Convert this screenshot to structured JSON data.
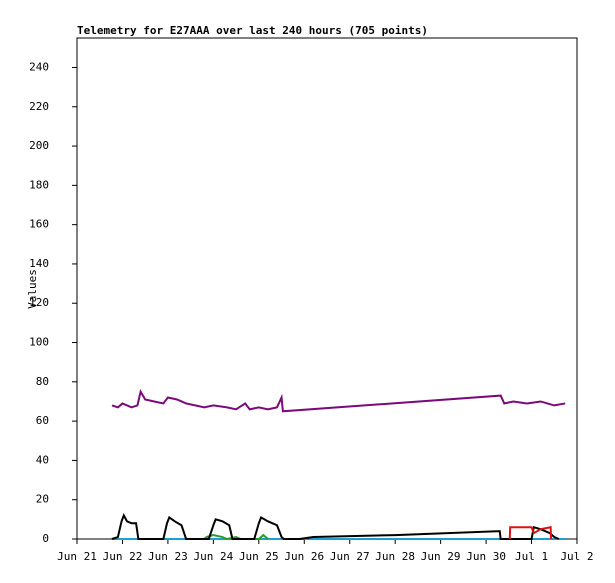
{
  "chart_data": {
    "type": "line",
    "title": "Telemetry for E27AAA over last 240 hours (705 points)",
    "y_label": "Values",
    "xlim": [
      0,
      11
    ],
    "xticks": [
      {
        "value": 0,
        "label": "Jun 21"
      },
      {
        "value": 1,
        "label": "Jun 22"
      },
      {
        "value": 2,
        "label": "Jun 23"
      },
      {
        "value": 3,
        "label": "Jun 24"
      },
      {
        "value": 4,
        "label": "Jun 25"
      },
      {
        "value": 5,
        "label": "Jun 26"
      },
      {
        "value": 6,
        "label": "Jun 27"
      },
      {
        "value": 7,
        "label": "Jun 28"
      },
      {
        "value": 8,
        "label": "Jun 29"
      },
      {
        "value": 9,
        "label": "Jun 30"
      },
      {
        "value": 10,
        "label": "Jul 1"
      },
      {
        "value": 11,
        "label": "Jul 2"
      }
    ],
    "ylim": [
      0,
      255
    ],
    "yticks": [
      0,
      20,
      40,
      60,
      80,
      100,
      120,
      140,
      160,
      180,
      200,
      220,
      240
    ],
    "series": [
      {
        "color": "#1f9fd0",
        "x": [
          0.77,
          10.74
        ],
        "values": [
          0,
          0
        ]
      },
      {
        "color": "#7a0a7a",
        "x": [
          0.77,
          0.9,
          1.0,
          1.2,
          1.33,
          1.4,
          1.5,
          1.7,
          1.9,
          2.0,
          2.2,
          2.4,
          2.6,
          2.8,
          3.0,
          3.3,
          3.5,
          3.7,
          3.8,
          4.0,
          4.2,
          4.4,
          4.5,
          4.53,
          9.32,
          9.4,
          9.6,
          9.9,
          10.2,
          10.5,
          10.74
        ],
        "values": [
          68,
          67,
          69,
          67,
          68,
          75,
          71,
          70,
          69,
          72,
          71,
          69,
          68,
          67,
          68,
          67,
          66,
          69,
          66,
          67,
          66,
          67,
          72,
          65,
          73,
          69,
          70,
          69,
          70,
          68,
          69
        ]
      },
      {
        "color": "#2a9a2a",
        "x": [
          2.8,
          2.85,
          3.0,
          3.2,
          3.3,
          3.5,
          3.6,
          4.0,
          4.1,
          4.2
        ],
        "values": [
          0,
          1,
          2,
          1,
          0,
          1,
          0,
          0,
          2,
          0
        ]
      },
      {
        "color": "#000000",
        "x": [
          0.77,
          0.9,
          0.98,
          1.03,
          1.1,
          1.2,
          1.3,
          1.35,
          1.9,
          1.98,
          2.03,
          2.15,
          2.3,
          2.4,
          2.9,
          3.0,
          3.05,
          3.2,
          3.35,
          3.42,
          3.9,
          4.0,
          4.05,
          4.2,
          4.4,
          4.5,
          4.55,
          4.9,
          5.2,
          7.0,
          9.3,
          9.32,
          10.0,
          10.05,
          10.2,
          10.4,
          10.5,
          10.6
        ],
        "values": [
          0,
          1,
          9,
          12,
          9,
          8,
          8,
          0,
          0,
          8,
          11,
          9,
          7,
          0,
          0,
          7,
          10,
          9,
          7,
          0,
          0,
          8,
          11,
          9,
          7,
          1,
          0,
          0,
          1,
          2,
          4,
          0,
          0,
          6,
          5,
          3,
          1,
          0
        ]
      },
      {
        "color": "#e01010",
        "x": [
          9.52,
          9.53,
          10.0,
          10.05,
          10.2,
          10.42,
          10.43
        ],
        "values": [
          0,
          6,
          6,
          3,
          5,
          6,
          0
        ]
      }
    ]
  }
}
